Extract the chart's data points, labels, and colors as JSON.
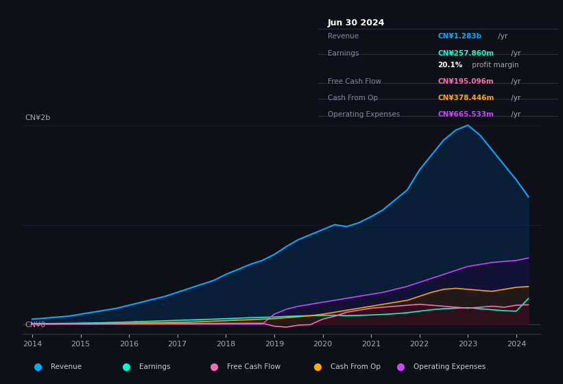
{
  "background_color": "#0d1117",
  "plot_bg_color": "#0d1117",
  "title_box": {
    "date": "Jun 30 2024",
    "rows": [
      {
        "label": "Revenue",
        "value": "CN¥1.283b",
        "unit": " /yr",
        "color": "#00aaff"
      },
      {
        "label": "Earnings",
        "value": "CN¥257.860m",
        "unit": " /yr",
        "color": "#00ffcc"
      },
      {
        "label": "",
        "value": "20.1%",
        "unit": " profit margin",
        "color": "#ffffff"
      },
      {
        "label": "Free Cash Flow",
        "value": "CN¥195.096m",
        "unit": " /yr",
        "color": "#ff69b4"
      },
      {
        "label": "Cash From Op",
        "value": "CN¥378.446m",
        "unit": " /yr",
        "color": "#ffa500"
      },
      {
        "label": "Operating Expenses",
        "value": "CN¥665.533m",
        "unit": " /yr",
        "color": "#cc44ff"
      }
    ]
  },
  "ylabel": "CN¥2b",
  "y0_label": "CN¥0",
  "x_ticks": [
    2014,
    2015,
    2016,
    2017,
    2018,
    2019,
    2020,
    2021,
    2022,
    2023,
    2024
  ],
  "series": {
    "revenue": {
      "color": "#00aaff",
      "fill_color": "#003366",
      "label": "Revenue",
      "x": [
        2014,
        2014.25,
        2014.5,
        2014.75,
        2015,
        2015.25,
        2015.5,
        2015.75,
        2016,
        2016.25,
        2016.5,
        2016.75,
        2017,
        2017.25,
        2017.5,
        2017.75,
        2018,
        2018.25,
        2018.5,
        2018.75,
        2019,
        2019.25,
        2019.5,
        2019.75,
        2020,
        2020.25,
        2020.5,
        2020.75,
        2021,
        2021.25,
        2021.5,
        2021.75,
        2022,
        2022.25,
        2022.5,
        2022.75,
        2023,
        2023.25,
        2023.5,
        2023.75,
        2024,
        2024.25
      ],
      "y": [
        0.05,
        0.06,
        0.07,
        0.08,
        0.1,
        0.12,
        0.14,
        0.16,
        0.19,
        0.22,
        0.25,
        0.28,
        0.32,
        0.36,
        0.4,
        0.44,
        0.5,
        0.55,
        0.6,
        0.64,
        0.7,
        0.78,
        0.85,
        0.9,
        0.95,
        1.0,
        0.98,
        1.02,
        1.08,
        1.15,
        1.25,
        1.35,
        1.55,
        1.7,
        1.85,
        1.95,
        2.0,
        1.9,
        1.75,
        1.6,
        1.45,
        1.28
      ]
    },
    "earnings": {
      "color": "#00ffcc",
      "fill_color": "#003322",
      "label": "Earnings",
      "x": [
        2014,
        2014.25,
        2014.5,
        2014.75,
        2015,
        2015.25,
        2015.5,
        2015.75,
        2016,
        2016.25,
        2016.5,
        2016.75,
        2017,
        2017.25,
        2017.5,
        2017.75,
        2018,
        2018.25,
        2018.5,
        2018.75,
        2019,
        2019.25,
        2019.5,
        2019.75,
        2020,
        2020.25,
        2020.5,
        2020.75,
        2021,
        2021.25,
        2021.5,
        2021.75,
        2022,
        2022.25,
        2022.5,
        2022.75,
        2023,
        2023.25,
        2023.5,
        2023.75,
        2024,
        2024.25
      ],
      "y": [
        0.005,
        0.006,
        0.007,
        0.008,
        0.01,
        0.012,
        0.015,
        0.018,
        0.022,
        0.026,
        0.03,
        0.034,
        0.038,
        0.042,
        0.046,
        0.05,
        0.055,
        0.06,
        0.065,
        0.068,
        0.072,
        0.078,
        0.082,
        0.085,
        0.088,
        0.09,
        0.085,
        0.088,
        0.092,
        0.098,
        0.105,
        0.115,
        0.13,
        0.145,
        0.155,
        0.16,
        0.165,
        0.155,
        0.145,
        0.135,
        0.13,
        0.258
      ]
    },
    "free_cash_flow": {
      "color": "#ff69b4",
      "fill_color": "#440022",
      "label": "Free Cash Flow",
      "x": [
        2014,
        2014.25,
        2014.5,
        2014.75,
        2015,
        2015.25,
        2015.5,
        2015.75,
        2016,
        2016.25,
        2016.5,
        2016.75,
        2017,
        2017.25,
        2017.5,
        2017.75,
        2018,
        2018.25,
        2018.5,
        2018.75,
        2019,
        2019.25,
        2019.5,
        2019.75,
        2020,
        2020.25,
        2020.5,
        2020.75,
        2021,
        2021.25,
        2021.5,
        2021.75,
        2022,
        2022.25,
        2022.5,
        2022.75,
        2023,
        2023.25,
        2023.5,
        2023.75,
        2024,
        2024.25
      ],
      "y": [
        0.001,
        0.001,
        0.001,
        0.002,
        0.002,
        0.002,
        0.003,
        0.003,
        0.004,
        0.004,
        0.005,
        0.005,
        0.006,
        0.006,
        0.007,
        0.007,
        0.008,
        0.008,
        0.009,
        0.009,
        -0.02,
        -0.03,
        -0.01,
        -0.005,
        0.05,
        0.08,
        0.12,
        0.14,
        0.16,
        0.17,
        0.18,
        0.19,
        0.2,
        0.19,
        0.18,
        0.17,
        0.16,
        0.17,
        0.18,
        0.17,
        0.19,
        0.195
      ]
    },
    "cash_from_op": {
      "color": "#ffa500",
      "fill_color": "#332200",
      "label": "Cash From Op",
      "x": [
        2014,
        2014.25,
        2014.5,
        2014.75,
        2015,
        2015.25,
        2015.5,
        2015.75,
        2016,
        2016.25,
        2016.5,
        2016.75,
        2017,
        2017.25,
        2017.5,
        2017.75,
        2018,
        2018.25,
        2018.5,
        2018.75,
        2019,
        2019.25,
        2019.5,
        2019.75,
        2020,
        2020.25,
        2020.5,
        2020.75,
        2021,
        2021.25,
        2021.5,
        2021.75,
        2022,
        2022.25,
        2022.5,
        2022.75,
        2023,
        2023.25,
        2023.5,
        2023.75,
        2024,
        2024.25
      ],
      "y": [
        0.002,
        0.003,
        0.003,
        0.004,
        0.005,
        0.006,
        0.007,
        0.008,
        0.01,
        0.012,
        0.014,
        0.016,
        0.018,
        0.02,
        0.025,
        0.03,
        0.035,
        0.04,
        0.045,
        0.05,
        0.055,
        0.065,
        0.075,
        0.085,
        0.1,
        0.12,
        0.14,
        0.16,
        0.18,
        0.2,
        0.22,
        0.24,
        0.28,
        0.32,
        0.35,
        0.36,
        0.35,
        0.34,
        0.33,
        0.35,
        0.37,
        0.378
      ]
    },
    "operating_expenses": {
      "color": "#cc44ff",
      "fill_color": "#220033",
      "label": "Operating Expenses",
      "x": [
        2014,
        2014.25,
        2014.5,
        2014.75,
        2015,
        2015.25,
        2015.5,
        2015.75,
        2016,
        2016.25,
        2016.5,
        2016.75,
        2017,
        2017.25,
        2017.5,
        2017.75,
        2018,
        2018.25,
        2018.5,
        2018.75,
        2019,
        2019.25,
        2019.5,
        2019.75,
        2020,
        2020.25,
        2020.5,
        2020.75,
        2021,
        2021.25,
        2021.5,
        2021.75,
        2022,
        2022.25,
        2022.5,
        2022.75,
        2023,
        2023.25,
        2023.5,
        2023.75,
        2024,
        2024.25
      ],
      "y": [
        0.0,
        0.0,
        0.0,
        0.0,
        0.0,
        0.0,
        0.0,
        0.0,
        0.0,
        0.0,
        0.0,
        0.0,
        0.0,
        0.0,
        0.0,
        0.0,
        0.0,
        0.0,
        0.0,
        0.0,
        0.1,
        0.15,
        0.18,
        0.2,
        0.22,
        0.24,
        0.26,
        0.28,
        0.3,
        0.32,
        0.35,
        0.38,
        0.42,
        0.46,
        0.5,
        0.54,
        0.58,
        0.6,
        0.62,
        0.63,
        0.64,
        0.665
      ]
    }
  },
  "legend": [
    {
      "label": "Revenue",
      "color": "#00aaff"
    },
    {
      "label": "Earnings",
      "color": "#00ffcc"
    },
    {
      "label": "Free Cash Flow",
      "color": "#ff69b4"
    },
    {
      "label": "Cash From Op",
      "color": "#ffa500"
    },
    {
      "label": "Operating Expenses",
      "color": "#cc44ff"
    }
  ]
}
